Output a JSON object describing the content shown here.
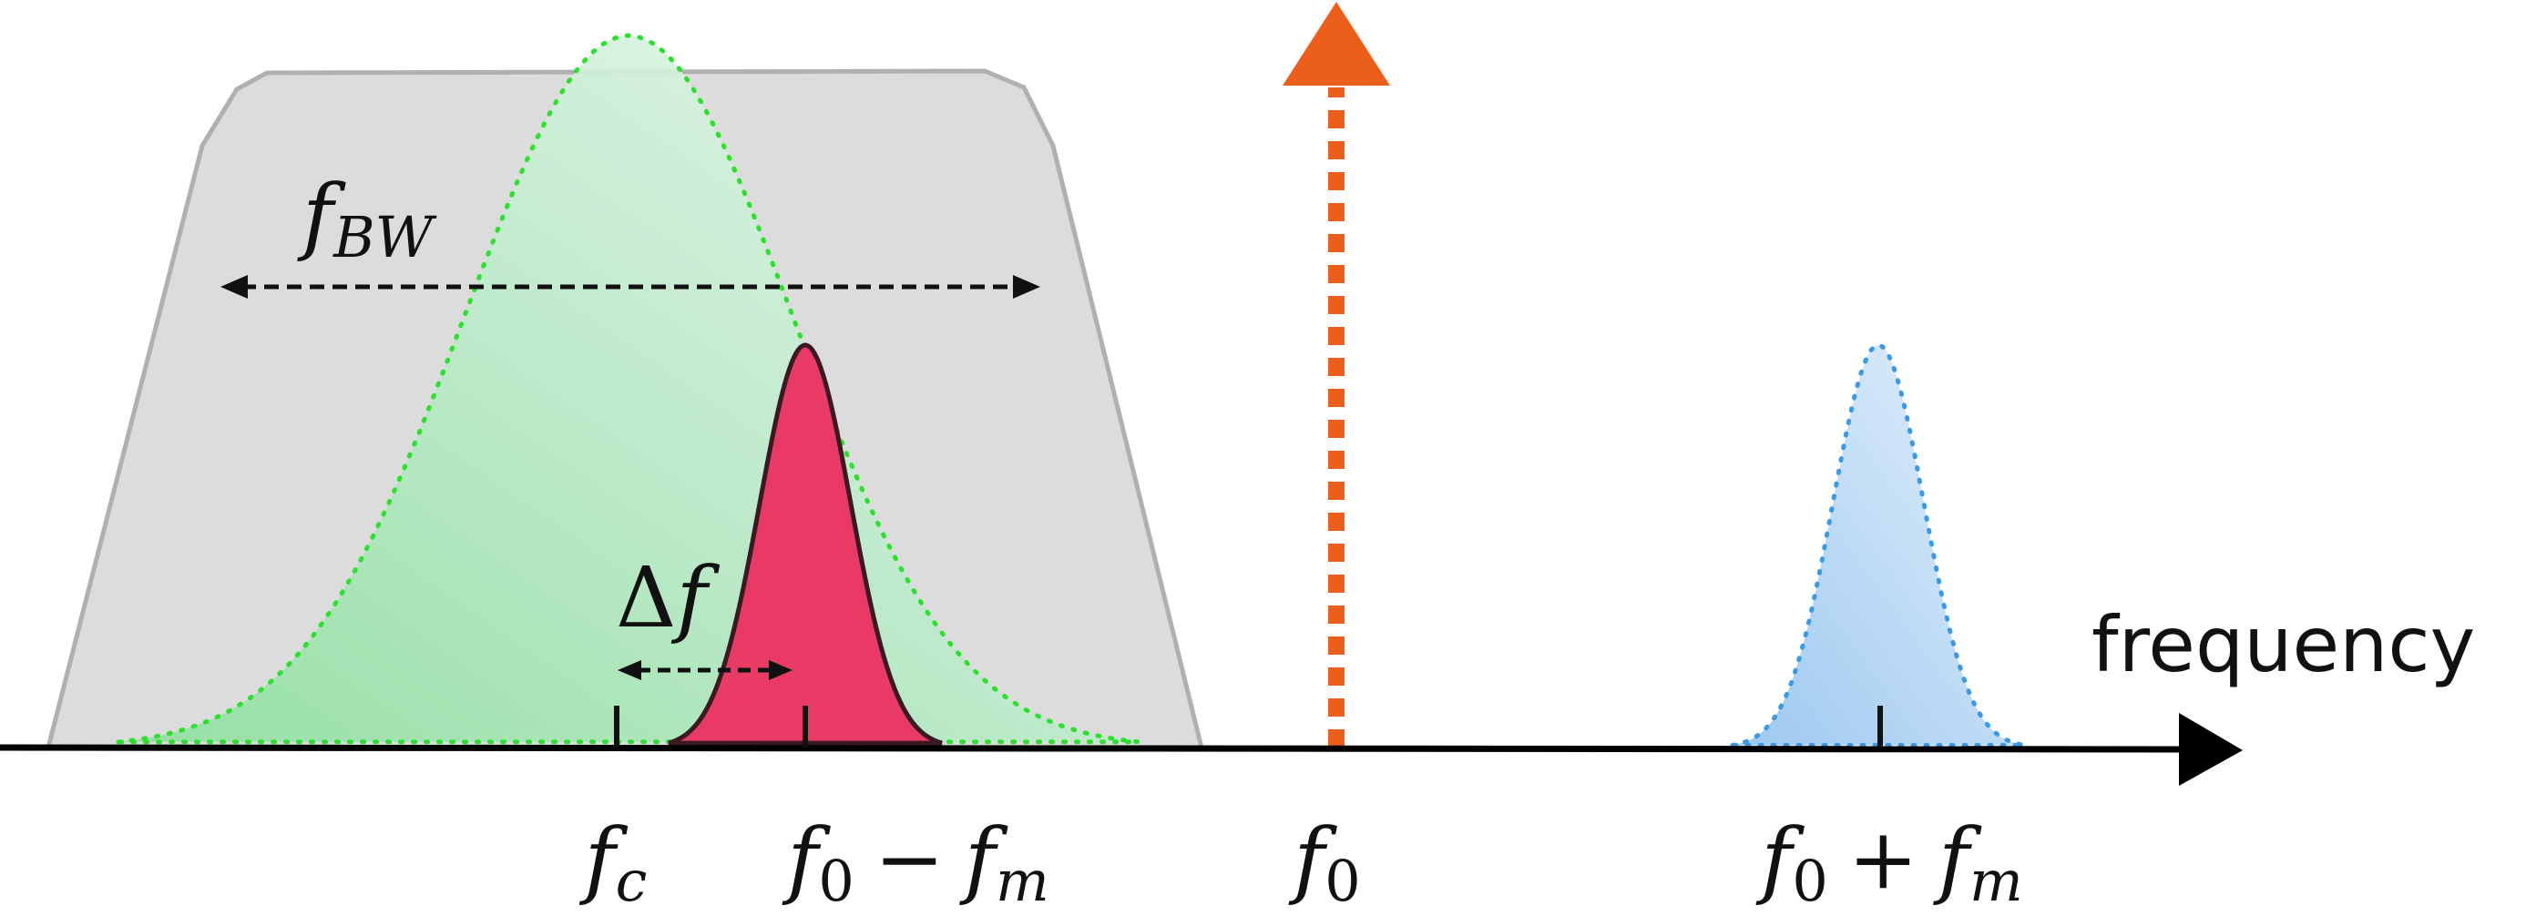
{
  "labels": {
    "bandwidth": {
      "base": "f",
      "sub": "BW"
    },
    "offset": {
      "symbol": "Δ",
      "base": "f"
    },
    "axis": "frequency",
    "fc": {
      "base": "f",
      "sub": "c"
    },
    "lower": {
      "base": "f",
      "sub": "0",
      "op": "−",
      "base2": "f",
      "sub2": "m"
    },
    "f0": {
      "base": "f",
      "sub": "0"
    },
    "upper": {
      "base": "f",
      "sub": "0",
      "op": "+",
      "base2": "f",
      "sub2": "m"
    }
  }
}
